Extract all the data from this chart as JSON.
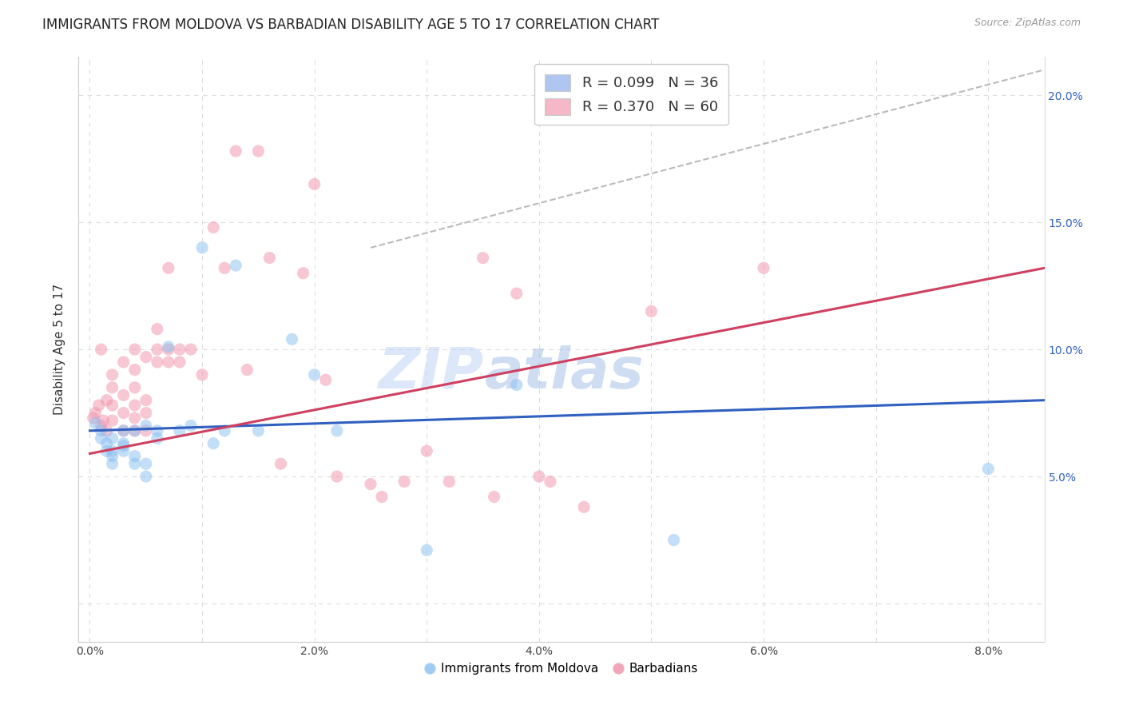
{
  "title": "IMMIGRANTS FROM MOLDOVA VS BARBADIAN DISABILITY AGE 5 TO 17 CORRELATION CHART",
  "source": "Source: ZipAtlas.com",
  "ylabel": "Disability Age 5 to 17",
  "x_ticks": [
    0.0,
    0.01,
    0.02,
    0.03,
    0.04,
    0.05,
    0.06,
    0.07,
    0.08
  ],
  "x_tick_labels": [
    "0.0%",
    "",
    "2.0%",
    "",
    "4.0%",
    "",
    "6.0%",
    "",
    "8.0%"
  ],
  "y_ticks": [
    0.0,
    0.05,
    0.1,
    0.15,
    0.2
  ],
  "y_tick_labels": [
    "",
    "5.0%",
    "10.0%",
    "15.0%",
    "20.0%"
  ],
  "xlim": [
    -0.001,
    0.085
  ],
  "ylim": [
    -0.015,
    0.215
  ],
  "legend_entries": [
    {
      "label": "R = 0.099   N = 36",
      "color": "#aec6f0"
    },
    {
      "label": "R = 0.370   N = 60",
      "color": "#f4b8c8"
    }
  ],
  "blue_scatter_x": [
    0.0005,
    0.001,
    0.001,
    0.0015,
    0.0015,
    0.002,
    0.002,
    0.002,
    0.002,
    0.003,
    0.003,
    0.003,
    0.003,
    0.004,
    0.004,
    0.004,
    0.005,
    0.005,
    0.005,
    0.006,
    0.006,
    0.007,
    0.008,
    0.009,
    0.01,
    0.011,
    0.012,
    0.013,
    0.015,
    0.018,
    0.02,
    0.022,
    0.03,
    0.038,
    0.052,
    0.08
  ],
  "blue_scatter_y": [
    0.071,
    0.068,
    0.065,
    0.063,
    0.06,
    0.06,
    0.058,
    0.055,
    0.065,
    0.063,
    0.06,
    0.062,
    0.068,
    0.055,
    0.058,
    0.068,
    0.05,
    0.055,
    0.07,
    0.065,
    0.068,
    0.101,
    0.068,
    0.07,
    0.14,
    0.063,
    0.068,
    0.133,
    0.068,
    0.104,
    0.09,
    0.068,
    0.021,
    0.086,
    0.025,
    0.053
  ],
  "pink_scatter_x": [
    0.0003,
    0.0005,
    0.0008,
    0.001,
    0.001,
    0.0012,
    0.0015,
    0.0015,
    0.002,
    0.002,
    0.002,
    0.002,
    0.003,
    0.003,
    0.003,
    0.003,
    0.004,
    0.004,
    0.004,
    0.004,
    0.004,
    0.004,
    0.005,
    0.005,
    0.005,
    0.005,
    0.006,
    0.006,
    0.006,
    0.007,
    0.007,
    0.007,
    0.008,
    0.008,
    0.009,
    0.01,
    0.011,
    0.012,
    0.013,
    0.014,
    0.015,
    0.016,
    0.017,
    0.019,
    0.02,
    0.021,
    0.022,
    0.025,
    0.026,
    0.028,
    0.03,
    0.032,
    0.035,
    0.036,
    0.038,
    0.04,
    0.041,
    0.044,
    0.05,
    0.06
  ],
  "pink_scatter_y": [
    0.073,
    0.075,
    0.078,
    0.07,
    0.1,
    0.072,
    0.068,
    0.08,
    0.085,
    0.072,
    0.078,
    0.09,
    0.068,
    0.075,
    0.082,
    0.095,
    0.068,
    0.073,
    0.078,
    0.085,
    0.092,
    0.1,
    0.068,
    0.075,
    0.08,
    0.097,
    0.095,
    0.1,
    0.108,
    0.095,
    0.1,
    0.132,
    0.095,
    0.1,
    0.1,
    0.09,
    0.148,
    0.132,
    0.178,
    0.092,
    0.178,
    0.136,
    0.055,
    0.13,
    0.165,
    0.088,
    0.05,
    0.047,
    0.042,
    0.048,
    0.06,
    0.048,
    0.136,
    0.042,
    0.122,
    0.05,
    0.048,
    0.038,
    0.115,
    0.132
  ],
  "blue_line_x": [
    0.0,
    0.085
  ],
  "blue_line_y": [
    0.068,
    0.08
  ],
  "pink_line_x": [
    0.0,
    0.085
  ],
  "pink_line_y": [
    0.059,
    0.132
  ],
  "dash_line_x": [
    0.025,
    0.085
  ],
  "dash_line_y": [
    0.14,
    0.21
  ],
  "watermark_zip": "ZIP",
  "watermark_atlas": "atlas",
  "scatter_size": 120,
  "scatter_alpha": 0.5,
  "line_width": 2.2,
  "blue_color": "#89bef0",
  "pink_color": "#f090a8",
  "blue_legend_color": "#aec6f0",
  "pink_legend_color": "#f4b8c8",
  "dash_color": "#bbbbbb",
  "grid_color": "#dddddd",
  "title_fontsize": 12,
  "axis_label_fontsize": 11,
  "tick_fontsize": 10,
  "legend_fontsize": 13
}
